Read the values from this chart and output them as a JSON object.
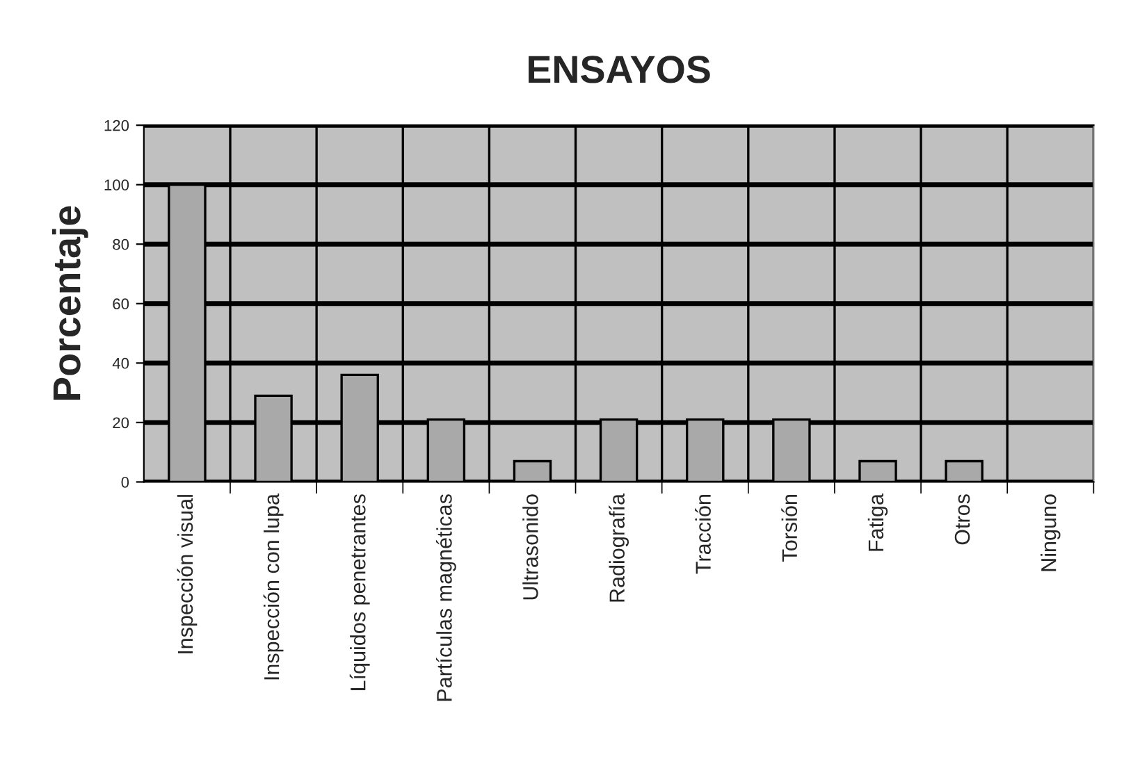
{
  "chart_data": {
    "type": "bar",
    "title": "ENSAYOS",
    "ylabel": "Porcentaje",
    "categories": [
      "Inspección visual",
      "Inspección con lupa",
      "Líquidos penetrantes",
      "Partículas magnéticas",
      "Ultrasonido",
      "Radiografía",
      "Tracción",
      "Torsión",
      "Fatiga",
      "Otros",
      "Ninguno"
    ],
    "values": [
      100,
      29,
      36,
      21,
      7,
      21,
      21,
      21,
      7,
      7,
      null
    ],
    "color": "#a9a9a9",
    "ylim": [
      0,
      120
    ],
    "yticks": [
      0,
      20,
      40,
      60,
      80,
      100,
      120
    ],
    "grid": true
  }
}
